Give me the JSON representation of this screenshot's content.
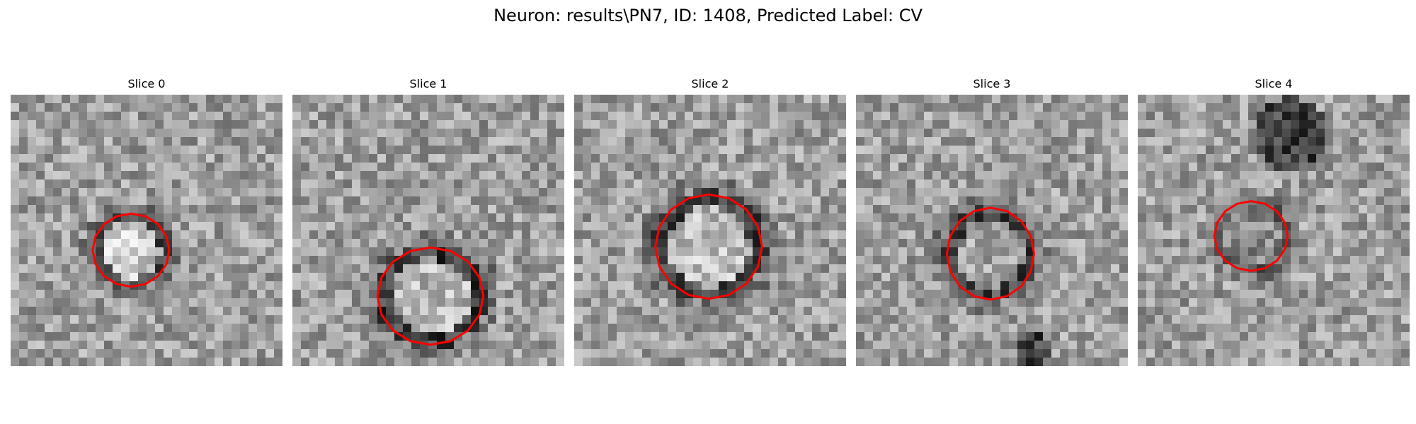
{
  "figure": {
    "title": "Neuron: results\\PN7, ID: 1408, Predicted Label: CV"
  },
  "panels": [
    {
      "title": "Slice 0"
    },
    {
      "title": "Slice 1"
    },
    {
      "title": "Slice 2"
    },
    {
      "title": "Slice 3"
    },
    {
      "title": "Slice 4"
    }
  ],
  "colors": {
    "contour": "#ff0000",
    "background": "#ffffff",
    "colormap": "grayscale"
  }
}
